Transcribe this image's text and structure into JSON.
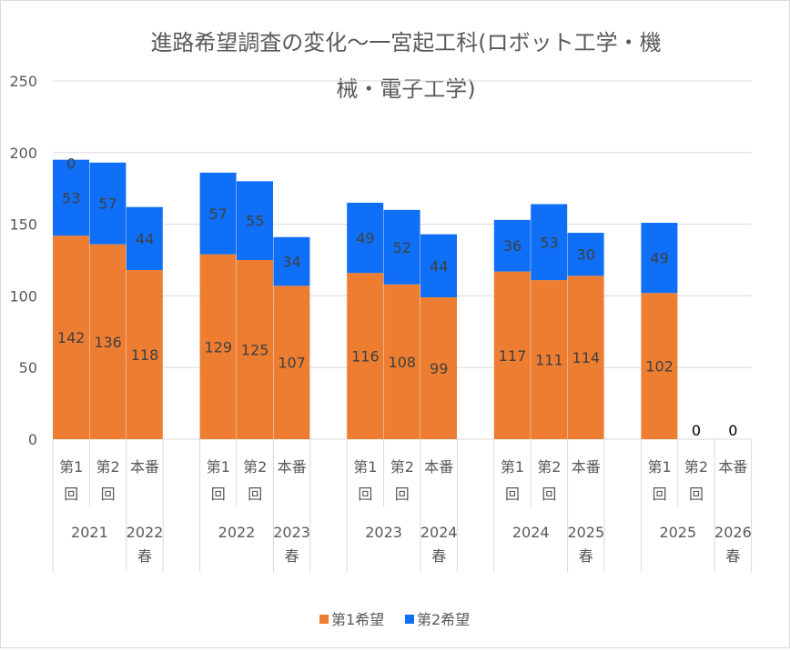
{
  "chart_data": {
    "type": "bar",
    "stacked": true,
    "title_line1": "進路希望調査の変化～一宮起工科(ロボット工学・機",
    "title_line2": "械・電子工学)",
    "ylim": [
      0,
      250
    ],
    "yticks": [
      "0",
      "50",
      "100",
      "150",
      "200",
      "250"
    ],
    "categories": [
      {
        "sub": [
          "第1",
          "回"
        ],
        "group": "2021"
      },
      {
        "sub": [
          "第2",
          "回"
        ],
        "group": "2021"
      },
      {
        "sub": [
          "本番"
        ],
        "group": "2022",
        "group2": "春"
      },
      {
        "sub": [
          "第1",
          "回"
        ],
        "group": "2022"
      },
      {
        "sub": [
          "第2",
          "回"
        ],
        "group": "2022"
      },
      {
        "sub": [
          "本番"
        ],
        "group": "2023",
        "group2": "春"
      },
      {
        "sub": [
          "第1",
          "回"
        ],
        "group": "2023"
      },
      {
        "sub": [
          "第2",
          "回"
        ],
        "group": "2023"
      },
      {
        "sub": [
          "本番"
        ],
        "group": "2024",
        "group2": "春"
      },
      {
        "sub": [
          "第1",
          "回"
        ],
        "group": "2024"
      },
      {
        "sub": [
          "第2",
          "回"
        ],
        "group": "2024"
      },
      {
        "sub": [
          "本番"
        ],
        "group": "2025",
        "group2": "春"
      },
      {
        "sub": [
          "第1",
          "回"
        ],
        "group": "2025"
      },
      {
        "sub": [
          "第2",
          "回"
        ],
        "group": "2025"
      },
      {
        "sub": [
          "本番"
        ],
        "group": "2026",
        "group2": "春"
      }
    ],
    "positions": [
      0,
      1,
      2,
      4,
      5,
      6,
      8,
      9,
      10,
      12,
      13,
      14,
      16,
      17,
      18
    ],
    "group_labels": [
      {
        "text": "2021",
        "from": 0,
        "to": 1
      },
      {
        "text": "2022",
        "text2": "春",
        "from": 2,
        "to": 2
      },
      {
        "text": "2022",
        "from": 4,
        "to": 5
      },
      {
        "text": "2023",
        "text2": "春",
        "from": 6,
        "to": 6
      },
      {
        "text": "2023",
        "from": 8,
        "to": 9
      },
      {
        "text": "2024",
        "text2": "春",
        "from": 10,
        "to": 10
      },
      {
        "text": "2024",
        "from": 12,
        "to": 13
      },
      {
        "text": "2025",
        "text2": "春",
        "from": 14,
        "to": 14
      },
      {
        "text": "2025",
        "from": 16,
        "to": 17
      },
      {
        "text": "2026",
        "text2": "春",
        "from": 18,
        "to": 18
      }
    ],
    "series": [
      {
        "name": "第1希望",
        "color": "#ed7d31",
        "values": [
          142,
          136,
          118,
          129,
          125,
          107,
          116,
          108,
          99,
          117,
          111,
          114,
          102,
          0,
          0
        ]
      },
      {
        "name": "第2希望",
        "color": "#0f6ff7",
        "values": [
          53,
          57,
          44,
          57,
          55,
          34,
          49,
          52,
          44,
          36,
          53,
          30,
          49,
          0,
          0
        ]
      }
    ],
    "labels": {
      "series1": [
        "142",
        "136",
        "118",
        "129",
        "125",
        "107",
        "116",
        "108",
        "99",
        "117",
        "111",
        "114",
        "102",
        "",
        ""
      ],
      "series2": [
        "53",
        "57",
        "44",
        "57",
        "55",
        "34",
        "49",
        "52",
        "44",
        "36",
        "53",
        "30",
        "49",
        "0",
        "0"
      ],
      "extra_top": "0"
    },
    "legend": [
      {
        "name": "第1希望",
        "color": "#ed7d31"
      },
      {
        "name": "第2希望",
        "color": "#0f6ff7"
      }
    ],
    "legend_position": "bottom",
    "grid": true
  }
}
